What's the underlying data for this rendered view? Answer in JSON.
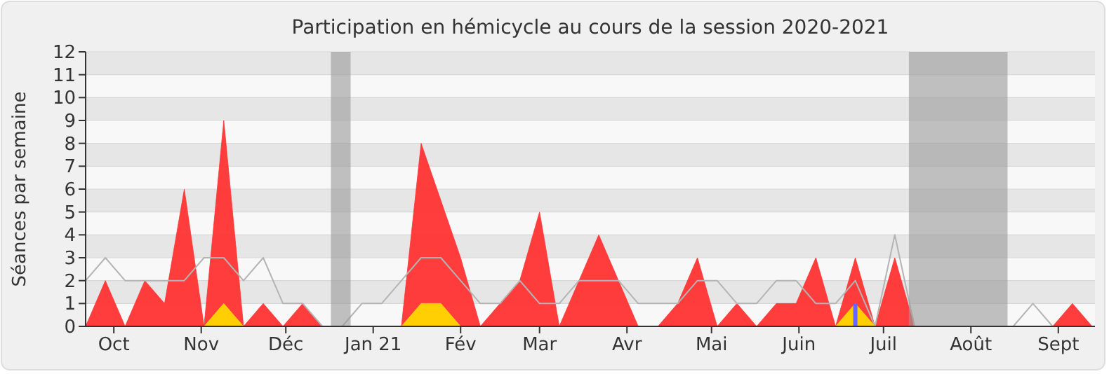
{
  "chart_data": {
    "type": "area",
    "title": "Participation en hémicycle au cours de la session 2020-2021",
    "ylabel": "Séances par semaine",
    "x": [
      "2020-09-21",
      "2020-09-28",
      "2020-10-05",
      "2020-10-12",
      "2020-10-19",
      "2020-10-26",
      "2020-11-02",
      "2020-11-09",
      "2020-11-16",
      "2020-11-23",
      "2020-11-30",
      "2020-12-07",
      "2020-12-14",
      "2020-12-21",
      "2020-12-28",
      "2021-01-04",
      "2021-01-11",
      "2021-01-18",
      "2021-01-25",
      "2021-02-01",
      "2021-02-08",
      "2021-02-15",
      "2021-02-22",
      "2021-03-01",
      "2021-03-08",
      "2021-03-15",
      "2021-03-22",
      "2021-03-29",
      "2021-04-05",
      "2021-04-12",
      "2021-04-19",
      "2021-04-26",
      "2021-05-03",
      "2021-05-10",
      "2021-05-17",
      "2021-05-24",
      "2021-05-31",
      "2021-06-07",
      "2021-06-14",
      "2021-06-21",
      "2021-06-28",
      "2021-07-05",
      "2021-07-12",
      "2021-07-19",
      "2021-07-26",
      "2021-08-02",
      "2021-08-09",
      "2021-08-16",
      "2021-08-23",
      "2021-08-30",
      "2021-09-06",
      "2021-09-13"
    ],
    "xlim": [
      "2020-09-21",
      "2021-09-14"
    ],
    "xticks": [
      {
        "value": "2020-10-01",
        "label": "Oct"
      },
      {
        "value": "2020-11-01",
        "label": "Nov"
      },
      {
        "value": "2020-12-01",
        "label": "Déc"
      },
      {
        "value": "2021-01-01",
        "label": "Jan 21"
      },
      {
        "value": "2021-02-01",
        "label": "Fév"
      },
      {
        "value": "2021-03-01",
        "label": "Mar"
      },
      {
        "value": "2021-04-01",
        "label": "Avr"
      },
      {
        "value": "2021-05-01",
        "label": "Mai"
      },
      {
        "value": "2021-06-01",
        "label": "Juin"
      },
      {
        "value": "2021-07-01",
        "label": "Juil"
      },
      {
        "value": "2021-08-01",
        "label": "Août"
      },
      {
        "value": "2021-09-01",
        "label": "Sept"
      }
    ],
    "ylim": [
      0,
      12
    ],
    "yticks": [
      0,
      1,
      2,
      3,
      4,
      5,
      6,
      7,
      8,
      9,
      10,
      11,
      12
    ],
    "grid": "y",
    "series": [
      {
        "color": "#ff3333",
        "values": [
          0,
          2,
          0,
          2,
          1,
          6,
          0,
          9,
          0,
          1,
          0,
          1,
          0,
          0,
          0,
          0,
          0,
          8,
          5.5,
          3,
          0,
          1,
          2,
          5,
          0,
          2,
          4,
          2,
          0,
          0,
          1,
          3,
          0,
          1,
          0,
          1,
          1,
          3,
          0,
          3,
          0,
          3,
          0,
          0,
          0,
          0,
          0,
          0,
          0,
          0,
          1,
          0
        ]
      },
      {
        "type": "line",
        "color": "#b4b4b4",
        "values": [
          2,
          3,
          2,
          2,
          2,
          2,
          3,
          3,
          2,
          3,
          1,
          1,
          0,
          0,
          1,
          1,
          2,
          3,
          3,
          2,
          1,
          1,
          2,
          1,
          1,
          2,
          2,
          2,
          1,
          1,
          1,
          2,
          2,
          1,
          1,
          2,
          2,
          1,
          1,
          2,
          0,
          4,
          0,
          0,
          0,
          0,
          0,
          0,
          1,
          0,
          0,
          0
        ]
      },
      {
        "type": "area",
        "color": "#ffd700",
        "values": [
          0,
          0,
          0,
          0,
          0,
          0,
          0,
          1,
          0,
          0,
          0,
          0,
          0,
          0,
          0,
          0,
          0,
          1,
          1,
          0,
          0,
          0,
          0,
          0,
          0,
          0,
          0,
          0,
          0,
          0,
          0,
          0,
          0,
          0,
          0,
          0,
          0,
          0,
          0,
          1,
          0,
          0,
          0,
          0,
          0,
          0,
          0,
          0,
          0,
          0,
          0,
          0
        ]
      },
      {
        "type": "bar",
        "color": "#6666ff",
        "values": [
          null,
          null,
          null,
          null,
          null,
          null,
          null,
          null,
          null,
          null,
          null,
          null,
          null,
          null,
          null,
          null,
          null,
          null,
          null,
          null,
          null,
          null,
          null,
          null,
          null,
          null,
          null,
          null,
          null,
          null,
          null,
          null,
          null,
          null,
          null,
          null,
          null,
          null,
          null,
          1,
          null,
          null,
          null,
          null,
          null,
          null,
          null,
          null,
          null,
          null,
          null,
          null
        ]
      }
    ],
    "bands": [
      {
        "axis": "x",
        "from": "2020-12-17",
        "to": "2020-12-24",
        "color": "#999999"
      },
      {
        "axis": "x",
        "from": "2021-07-10",
        "to": "2021-08-14",
        "color": "#999999"
      }
    ]
  }
}
